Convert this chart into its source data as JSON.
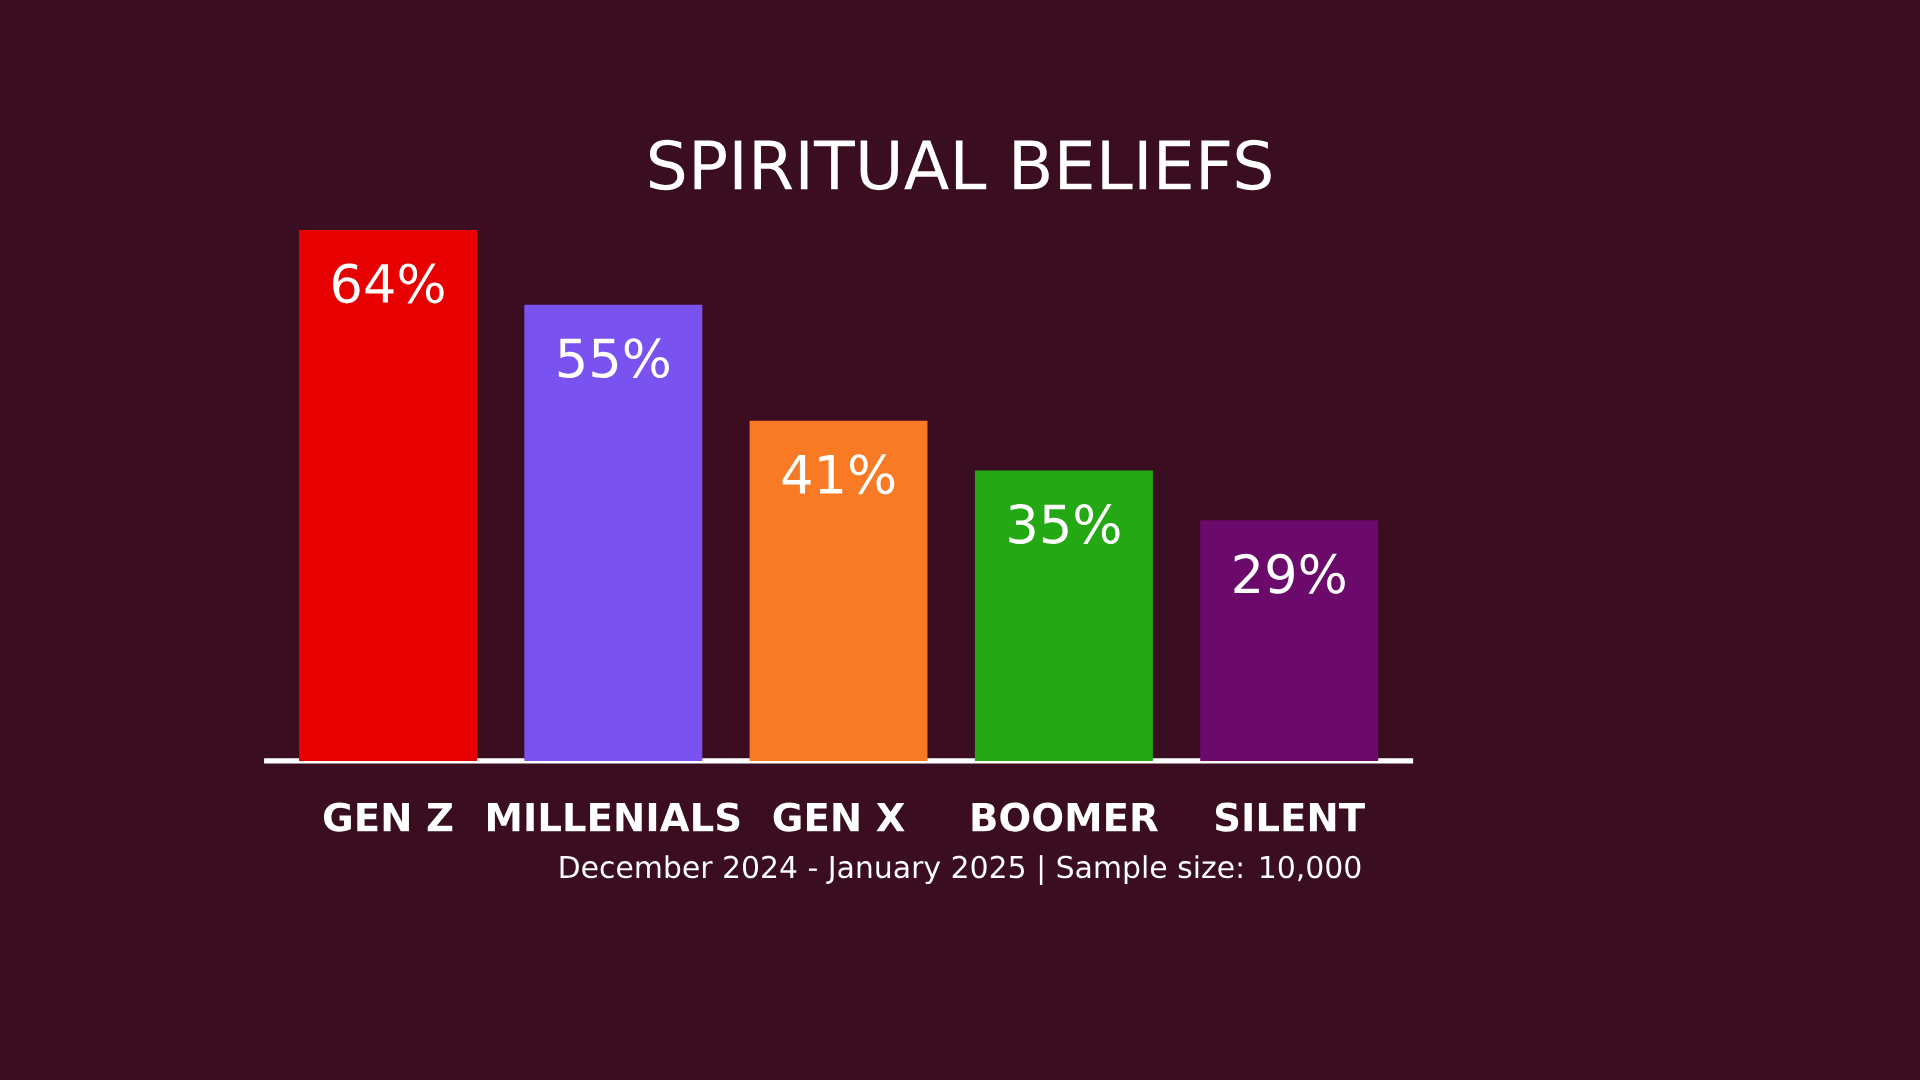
{
  "chart_data": {
    "type": "bar",
    "title": "SPIRITUAL BELIEFS",
    "categories": [
      "GEN Z",
      "MILLENIALS",
      "GEN X",
      "BOOMER",
      "SILENT"
    ],
    "values": [
      64,
      55,
      41,
      35,
      29
    ],
    "value_labels": [
      "64%",
      "55%",
      "41%",
      "35%",
      "29%"
    ],
    "colors": [
      "#e60000",
      "#7a52f0",
      "#f97a25",
      "#24a814",
      "#6c0a6c"
    ],
    "annotations": [
      "December 2024 - January 2025 | Sample size: 10,000"
    ]
  }
}
